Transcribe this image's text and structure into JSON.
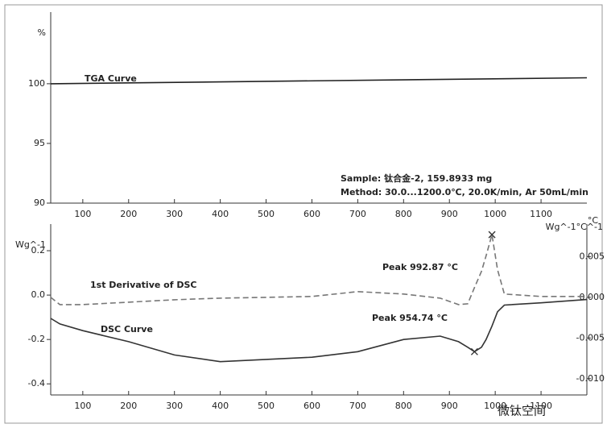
{
  "chart_data": [
    {
      "type": "line",
      "y_label": "%",
      "x": [
        30,
        1200
      ],
      "series": [
        {
          "name": "TGA Curve",
          "color": "#222222",
          "values": [
            100,
            100.5
          ]
        }
      ],
      "xlim": [
        30,
        1200
      ],
      "xticks": [
        100,
        200,
        300,
        400,
        500,
        600,
        700,
        800,
        900,
        1000,
        1100
      ],
      "ylim": [
        90,
        106
      ],
      "yticks": [
        90,
        95,
        100
      ],
      "annotations": [
        "Sample: 钛合金-2, 159.8933 mg",
        "Method: 30.0...1200.0℃, 20.0K/min, Ar 50mL/min"
      ]
    },
    {
      "type": "line",
      "y_label": "Wg^-1",
      "y2_label": "Wg^-1°C^-1",
      "x_unit": "°C",
      "x": [
        30,
        50,
        100,
        200,
        300,
        400,
        500,
        600,
        700,
        800,
        880,
        920,
        940,
        954.74,
        970,
        980,
        992.87,
        1005,
        1020,
        1100,
        1200
      ],
      "series": [
        {
          "name": "DSC Curve",
          "color": "#333333",
          "style": "solid",
          "values": [
            -0.105,
            -0.13,
            -0.16,
            -0.21,
            -0.27,
            -0.3,
            -0.29,
            -0.28,
            -0.255,
            -0.2,
            -0.185,
            -0.21,
            -0.235,
            -0.255,
            -0.235,
            -0.2,
            -0.14,
            -0.075,
            -0.045,
            -0.035,
            -0.02
          ]
        },
        {
          "name": "1st Derivative of DSC",
          "color": "#777777",
          "style": "dashed",
          "axis": "y2",
          "values": [
            0.0,
            -0.0009,
            -0.0009,
            -0.0006,
            -0.0003,
            -0.0001,
            0.0,
            0.0001,
            0.0007,
            0.0004,
            -0.0001,
            -0.0009,
            -0.0008,
            0.0012,
            0.0032,
            0.0051,
            0.0077,
            0.0034,
            0.0004,
            0.0001,
            0.0001
          ]
        }
      ],
      "xlim": [
        30,
        1200
      ],
      "xticks": [
        100,
        200,
        300,
        400,
        500,
        600,
        700,
        800,
        900,
        1000,
        1100
      ],
      "ylim": [
        -0.45,
        0.32
      ],
      "yticks": [
        {
          "value": -0.4,
          "label": "-0.4"
        },
        -0.2,
        {
          "value": 0,
          "label": "0.0"
        },
        0.2
      ],
      "y2lim": [
        -0.012,
        0.009
      ],
      "y2ticks": [
        {
          "value": -0.01,
          "label": "-0.010"
        },
        -0.005,
        {
          "value": 0,
          "label": "0.000"
        },
        0.005
      ],
      "peaks": [
        {
          "label": "Peak  954.74 °C",
          "series": 0,
          "index": 13
        },
        {
          "label": "Peak  992.87 °C",
          "series": 1,
          "index": 16
        }
      ]
    }
  ],
  "watermark": "微钛空间"
}
